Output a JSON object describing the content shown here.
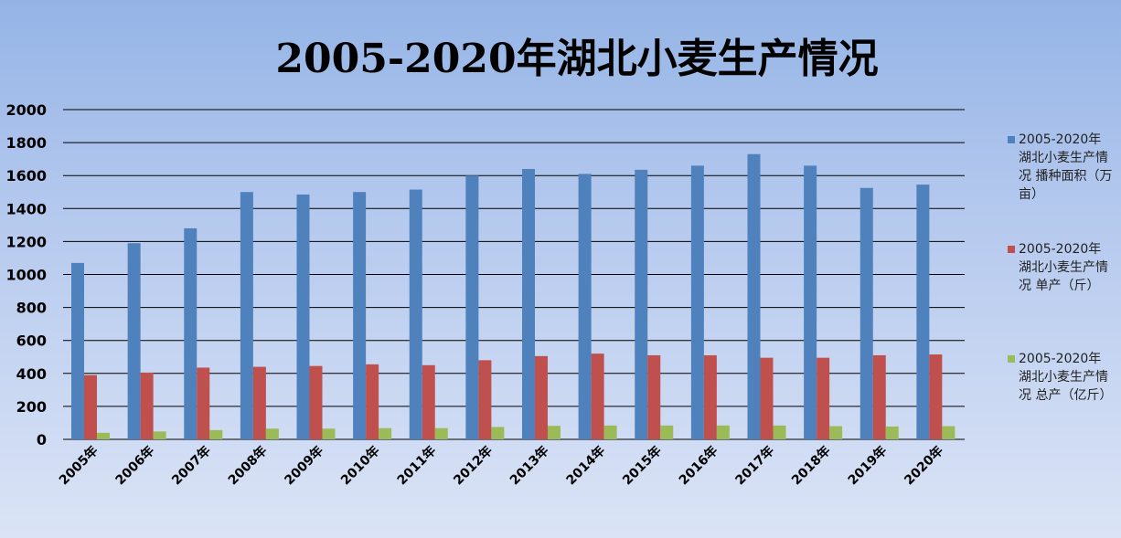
{
  "chart_data": {
    "type": "bar",
    "title": "2005-2020年湖北小麦生产情况",
    "categories": [
      "2005年",
      "2006年",
      "2007年",
      "2008年",
      "2009年",
      "2010年",
      "2011年",
      "2012年",
      "2013年",
      "2014年",
      "2015年",
      "2016年",
      "2017年",
      "2018年",
      "2019年",
      "2020年"
    ],
    "series": [
      {
        "name": "2005-2020年湖北小麦生产情况 播种面积（万亩）",
        "color": "#4f81bd",
        "values": [
          1070,
          1190,
          1280,
          1500,
          1485,
          1500,
          1515,
          1600,
          1640,
          1610,
          1635,
          1660,
          1730,
          1660,
          1525,
          1545
        ]
      },
      {
        "name": "2005-2020年湖北小麦生产情况 单产（斤）",
        "color": "#c0504d",
        "values": [
          390,
          405,
          435,
          440,
          445,
          455,
          450,
          480,
          505,
          520,
          510,
          510,
          495,
          495,
          510,
          515
        ]
      },
      {
        "name": "2005-2020年湖北小麦生产情况 总产（亿斤）",
        "color": "#9bbb59",
        "values": [
          40,
          48,
          56,
          65,
          65,
          68,
          68,
          75,
          82,
          84,
          84,
          84,
          84,
          80,
          78,
          80
        ]
      }
    ],
    "yticks": [
      0,
      200,
      400,
      600,
      800,
      1000,
      1200,
      1400,
      1600,
      1800,
      2000
    ],
    "ylim": [
      0,
      2000
    ],
    "grid": true,
    "legend_position": "right"
  }
}
